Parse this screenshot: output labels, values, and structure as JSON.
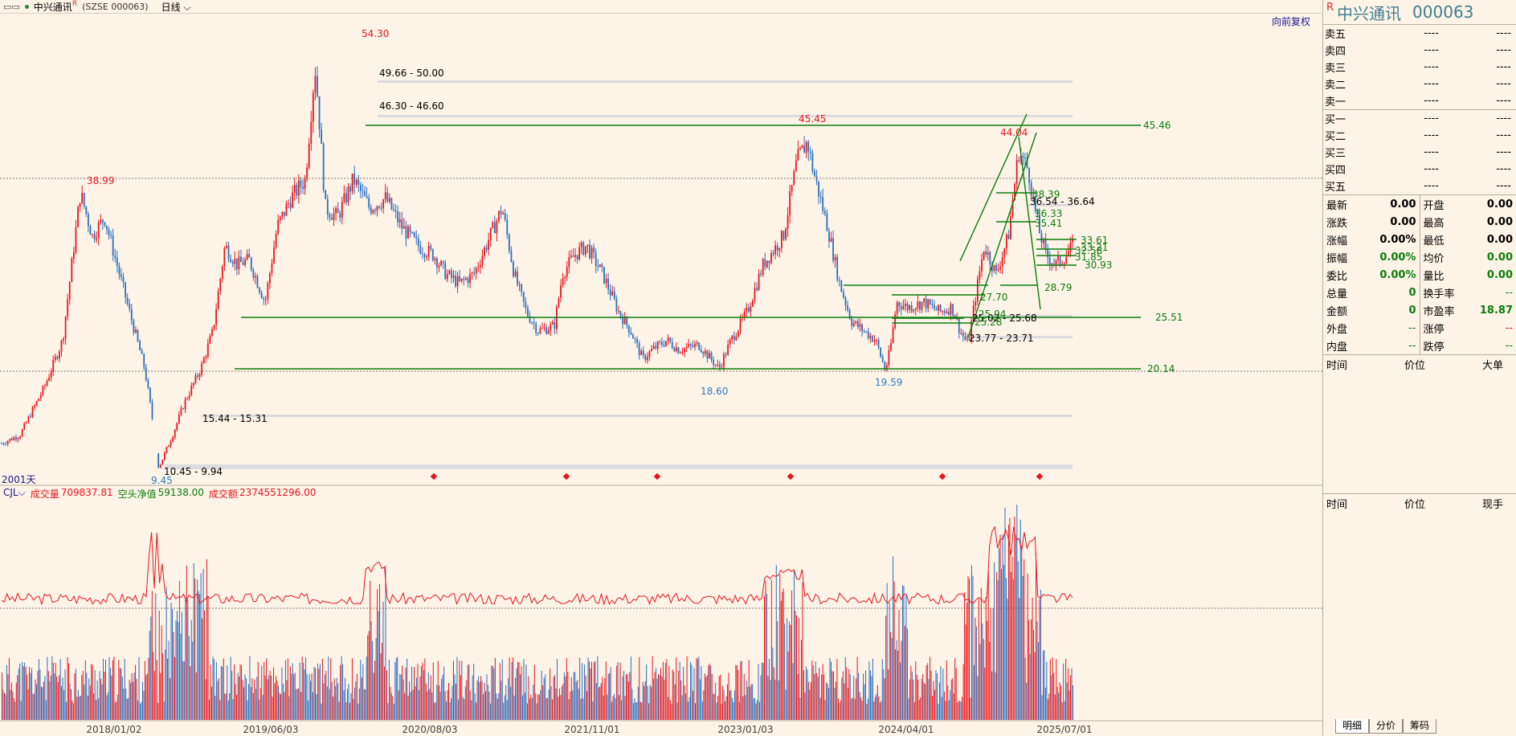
{
  "header": {
    "title": "中兴通讯",
    "superscript": "R",
    "code": "(SZSE 000063)",
    "period": "日线"
  },
  "chart_badges": {
    "restore": "向前复权",
    "day_count": "2001天"
  },
  "indicator": {
    "name": "CJL",
    "vol_label": "成交量",
    "vol_value": "709837.81",
    "short_label": "空头净值",
    "short_value": "59138.00",
    "amt_label": "成交额",
    "amt_value": "2374551296.00"
  },
  "colors": {
    "up": "#e8161c",
    "down": "#2a6fc1",
    "green": "#0b7d0b",
    "bg": "#fdf3e7"
  },
  "chart_data": {
    "type": "candlestick",
    "x_ticks": [
      "2018/01/02",
      "2019/06/03",
      "2020/08/03",
      "2021/11/01",
      "2023/01/03",
      "2024/04/01",
      "2025/07/01"
    ],
    "peak_labels": [
      {
        "label": "38.99",
        "color": "up"
      },
      {
        "label": "54.30",
        "color": "up"
      },
      {
        "label": "45.45",
        "color": "up"
      },
      {
        "label": "44.04",
        "color": "up"
      },
      {
        "label": "9.45",
        "color": "down"
      },
      {
        "label": "18.60",
        "color": "down"
      },
      {
        "label": "19.59",
        "color": "down"
      }
    ],
    "horizontal_levels": [
      "45.46",
      "25.51",
      "20.14"
    ],
    "zones": [
      "49.66 - 50.00",
      "46.30 - 46.60",
      "36.54 - 36.64",
      "25.02 - 25.68",
      "23.77 - 23.71",
      "15.44 - 15.31",
      "10.45 - 9.94"
    ],
    "green_marks": [
      "38.39",
      "36.33",
      "35.41",
      "33.61",
      "33.21",
      "32.58",
      "31.85",
      "30.93",
      "28.79",
      "27.70",
      "25.94",
      "25.28"
    ]
  },
  "quote_panel": {
    "title": "中兴通讯",
    "code": "000063",
    "r_mark": "R",
    "asks": [
      {
        "label": "卖五",
        "p": "----",
        "v": "----"
      },
      {
        "label": "卖四",
        "p": "----",
        "v": "----"
      },
      {
        "label": "卖三",
        "p": "----",
        "v": "----"
      },
      {
        "label": "卖二",
        "p": "----",
        "v": "----"
      },
      {
        "label": "卖一",
        "p": "----",
        "v": "----"
      }
    ],
    "bids": [
      {
        "label": "买一",
        "p": "----",
        "v": "----"
      },
      {
        "label": "买二",
        "p": "----",
        "v": "----"
      },
      {
        "label": "买三",
        "p": "----",
        "v": "----"
      },
      {
        "label": "买四",
        "p": "----",
        "v": "----"
      },
      {
        "label": "买五",
        "p": "----",
        "v": "----"
      }
    ],
    "left": [
      {
        "label": "最新",
        "value": "0.00",
        "color": "#000"
      },
      {
        "label": "涨跌",
        "value": "0.00",
        "color": "#000"
      },
      {
        "label": "涨幅",
        "value": "0.00%",
        "color": "#000"
      },
      {
        "label": "振幅",
        "value": "0.00%",
        "color": "#0b7d0b"
      },
      {
        "label": "委比",
        "value": "0.00%",
        "color": "#0b7d0b"
      },
      {
        "label": "总量",
        "value": "0",
        "color": "#0b7d0b"
      },
      {
        "label": "金额",
        "value": "0",
        "color": "#0b7d0b"
      },
      {
        "label": "外盘",
        "value": "--",
        "color": "#0b7d0b"
      },
      {
        "label": "内盘",
        "value": "--",
        "color": "#0b7d0b"
      }
    ],
    "right": [
      {
        "label": "开盘",
        "value": "0.00",
        "color": "#000"
      },
      {
        "label": "最高",
        "value": "0.00",
        "color": "#000"
      },
      {
        "label": "最低",
        "value": "0.00",
        "color": "#000"
      },
      {
        "label": "均价",
        "value": "0.00",
        "color": "#0b7d0b"
      },
      {
        "label": "量比",
        "value": "0.00",
        "color": "#0b7d0b"
      },
      {
        "label": "换手率",
        "value": "--",
        "color": "#0b7d0b"
      },
      {
        "label": "市盈率",
        "value": "18.87",
        "color": "#0b7d0b"
      },
      {
        "label": "涨停",
        "value": "--",
        "color": "#e8161c"
      },
      {
        "label": "跌停",
        "value": "--",
        "color": "#0b7d0b"
      }
    ],
    "trades_header": [
      "时间",
      "价位",
      "大单"
    ],
    "ticks_header": [
      "时间",
      "价位",
      "现手"
    ],
    "tabs": [
      "明细",
      "分价",
      "筹码"
    ]
  }
}
